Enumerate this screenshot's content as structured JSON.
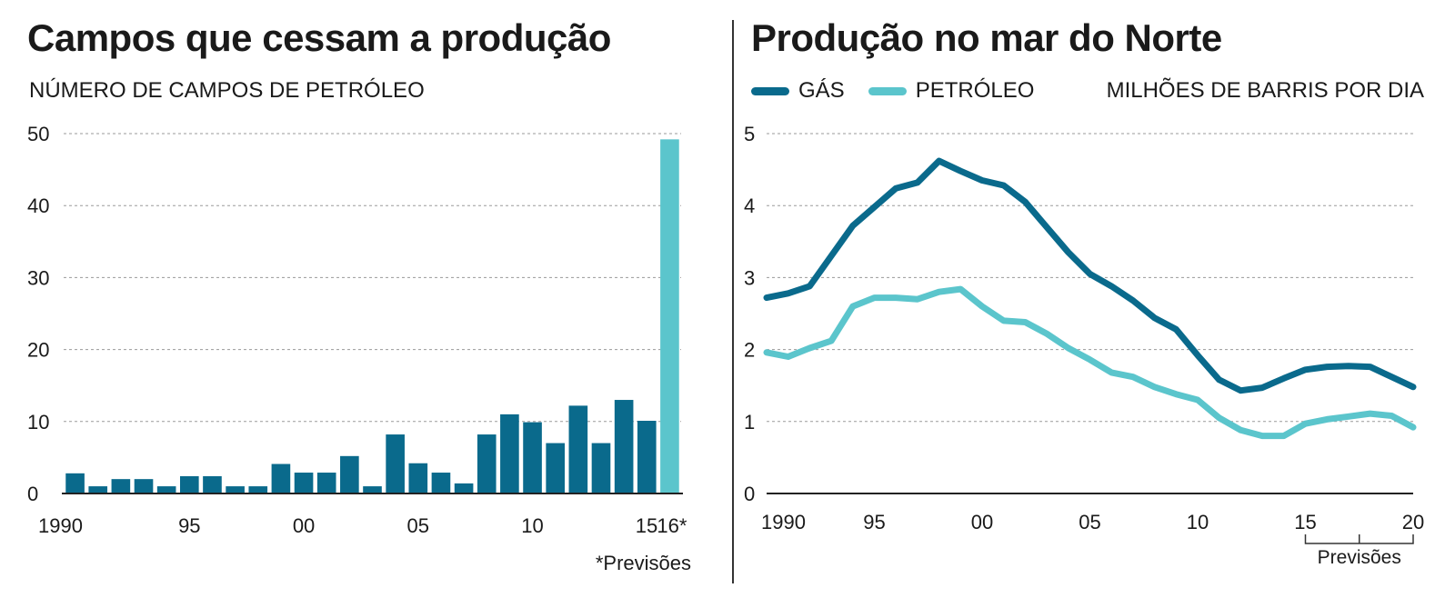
{
  "colors": {
    "dark": "#0a6a8c",
    "light": "#5bc5cc",
    "grid": "#9a9a9a",
    "text": "#1a1a1a"
  },
  "chart_data": [
    {
      "type": "bar",
      "title": "Campos  que cessam a produção",
      "ylabel": "NÚMERO DE CAMPOS DE PETRÓLEO",
      "xlabel": "",
      "ylim": [
        0,
        50
      ],
      "yticks": [
        "0",
        "10",
        "20",
        "30",
        "40",
        "50"
      ],
      "categories": [
        "1990",
        "1991",
        "1992",
        "1993",
        "1994",
        "1995",
        "1996",
        "1997",
        "1998",
        "1999",
        "2000",
        "2001",
        "2002",
        "2003",
        "2004",
        "2005",
        "2006",
        "2007",
        "2008",
        "2009",
        "2010",
        "2011",
        "2012",
        "2013",
        "2014",
        "2015",
        "2016"
      ],
      "values": [
        2.8,
        1,
        2,
        2,
        1,
        2.4,
        2.4,
        1,
        1,
        4.1,
        2.9,
        2.9,
        5.2,
        1,
        8.2,
        4.2,
        2.9,
        1.4,
        8.2,
        11,
        9.9,
        7,
        12.2,
        7,
        13,
        10.1,
        49.2
      ],
      "forecast": [
        false,
        false,
        false,
        false,
        false,
        false,
        false,
        false,
        false,
        false,
        false,
        false,
        false,
        false,
        false,
        false,
        false,
        false,
        false,
        false,
        false,
        false,
        false,
        false,
        false,
        false,
        true
      ],
      "xtick_labels": [
        {
          "label": "1990",
          "index": 0
        },
        {
          "label": "95",
          "index": 5
        },
        {
          "label": "00",
          "index": 10
        },
        {
          "label": "05",
          "index": 15
        },
        {
          "label": "10",
          "index": 20
        },
        {
          "label": "15",
          "index": 25
        },
        {
          "label": "16*",
          "index": 26
        }
      ],
      "footnote": "*Previsões"
    },
    {
      "type": "line",
      "title": "Produção no mar do Norte",
      "ylabel": "MILHÕES DE BARRIS POR DIA",
      "xlabel": "",
      "xlim": [
        1990,
        2020
      ],
      "ylim": [
        0,
        5
      ],
      "yticks": [
        "0",
        "1",
        "2",
        "3",
        "4",
        "5"
      ],
      "xtick_labels": [
        {
          "label": "1990",
          "x": 1990
        },
        {
          "label": "95",
          "x": 1995
        },
        {
          "label": "00",
          "x": 2000
        },
        {
          "label": "05",
          "x": 2005
        },
        {
          "label": "10",
          "x": 2010
        },
        {
          "label": "15",
          "x": 2015
        },
        {
          "label": "20",
          "x": 2020
        }
      ],
      "forecast_range": [
        2015,
        2020
      ],
      "forecast_label": "Previsões",
      "series": [
        {
          "name": "GÁS",
          "x": [
            1990,
            1991,
            1992,
            1993,
            1994,
            1995,
            1996,
            1997,
            1998,
            1999,
            2000,
            2001,
            2002,
            2003,
            2004,
            2005,
            2006,
            2007,
            2008,
            2009,
            2010,
            2011,
            2012,
            2013,
            2014,
            2015,
            2016,
            2017,
            2018,
            2019,
            2020
          ],
          "values": [
            2.72,
            2.78,
            2.88,
            3.3,
            3.72,
            3.98,
            4.24,
            4.32,
            4.62,
            4.48,
            4.35,
            4.28,
            4.05,
            3.7,
            3.35,
            3.05,
            2.88,
            2.68,
            2.44,
            2.28,
            1.92,
            1.58,
            1.43,
            1.47,
            1.6,
            1.72,
            1.76,
            1.77,
            1.76,
            1.62,
            1.48
          ]
        },
        {
          "name": "PETRÓLEO",
          "x": [
            1990,
            1991,
            1992,
            1993,
            1994,
            1995,
            1996,
            1997,
            1998,
            1999,
            2000,
            2001,
            2002,
            2003,
            2004,
            2005,
            2006,
            2007,
            2008,
            2009,
            2010,
            2011,
            2012,
            2013,
            2014,
            2015,
            2016,
            2017,
            2018,
            2019,
            2020
          ],
          "values": [
            1.96,
            1.9,
            2.02,
            2.12,
            2.6,
            2.72,
            2.72,
            2.7,
            2.8,
            2.84,
            2.6,
            2.4,
            2.38,
            2.22,
            2.02,
            1.86,
            1.68,
            1.62,
            1.48,
            1.38,
            1.3,
            1.05,
            0.88,
            0.8,
            0.8,
            0.97,
            1.03,
            1.07,
            1.11,
            1.08,
            0.92
          ]
        }
      ]
    }
  ]
}
